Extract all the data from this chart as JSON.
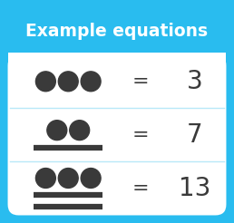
{
  "title": "Example equations",
  "title_bg_color": "#29bcef",
  "title_text_color": "#ffffff",
  "body_bg_color": "#ffffff",
  "outer_bg_color": "#29bcef",
  "dot_color": "#3a3a3a",
  "line_color": "#3a3a3a",
  "equals_color": "#3a3a3a",
  "number_color": "#3a3a3a",
  "row_divider_color": "#b8e8f8",
  "rows": [
    {
      "dots": 3,
      "lines": 0,
      "value": "3"
    },
    {
      "dots": 2,
      "lines": 1,
      "value": "7"
    },
    {
      "dots": 3,
      "lines": 2,
      "value": "13"
    }
  ],
  "figsize": [
    2.58,
    2.46
  ],
  "dpi": 100
}
